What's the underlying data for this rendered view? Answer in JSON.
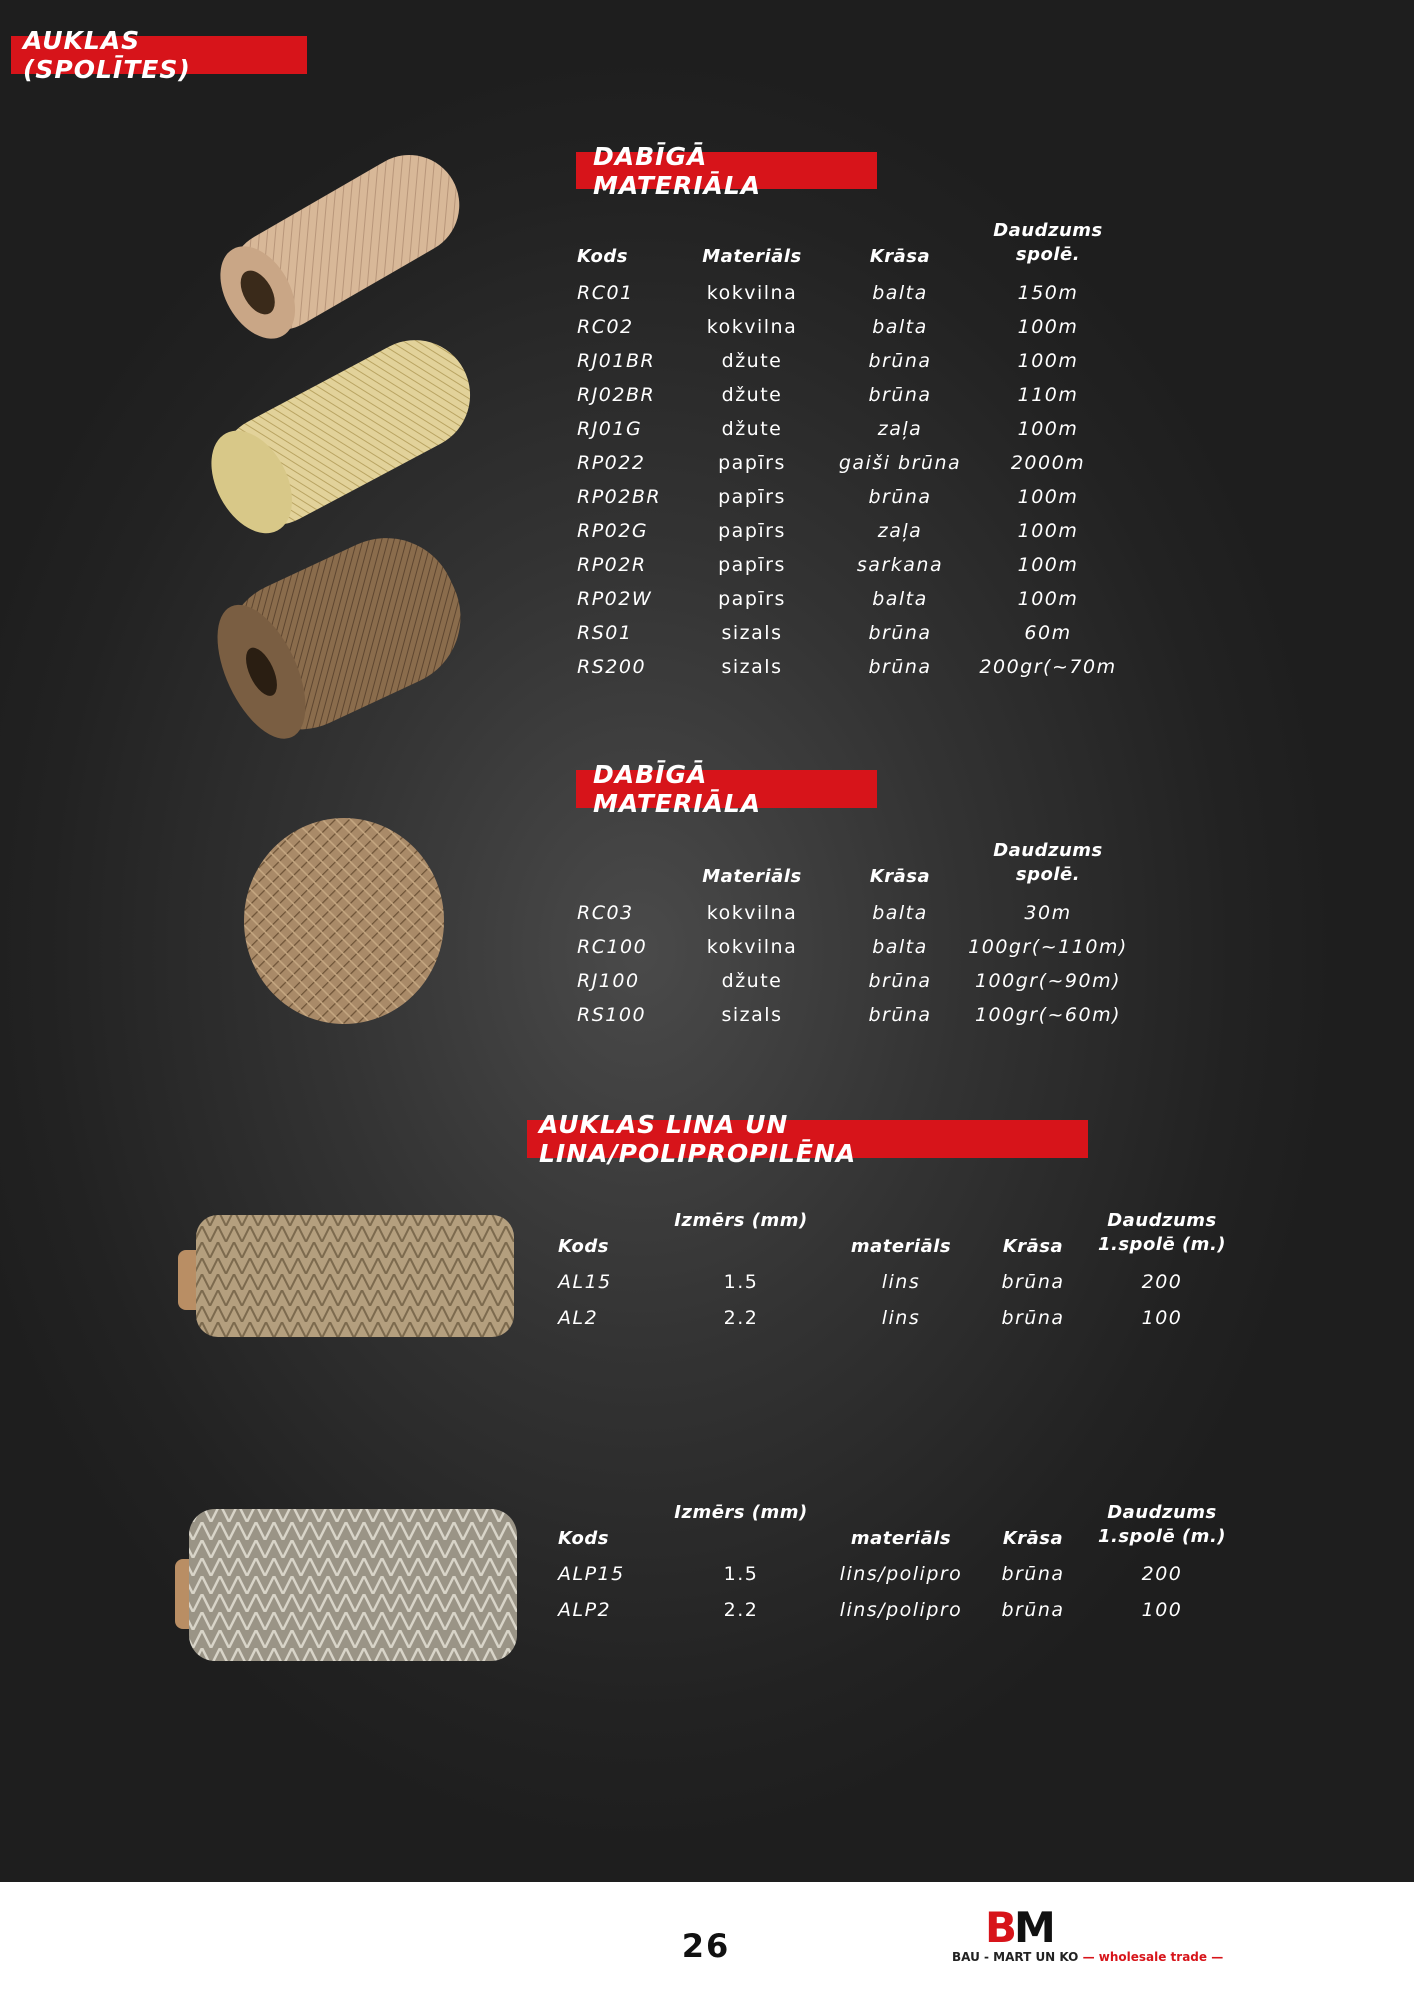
{
  "page_title": "AUKLAS (SPOLĪTES)",
  "section1": {
    "title": "DABĪGĀ MATERIĀLA",
    "headers": [
      "Kods",
      "Materiāls",
      "Krāsa",
      "Daudzums spolē."
    ],
    "rows": [
      [
        "RC01",
        "kokvilna",
        "balta",
        "150m"
      ],
      [
        "RC02",
        "kokvilna",
        "balta",
        "100m"
      ],
      [
        "RJ01BR",
        "džute",
        "brūna",
        "100m"
      ],
      [
        "RJ02BR",
        "džute",
        "brūna",
        "110m"
      ],
      [
        "RJ01G",
        "džute",
        "zaļa",
        "100m"
      ],
      [
        "RP022",
        "papīrs",
        "gaiši brūna",
        "2000m"
      ],
      [
        "RP02BR",
        "papīrs",
        "brūna",
        "100m"
      ],
      [
        "RP02G",
        "papīrs",
        "zaļa",
        "100m"
      ],
      [
        "RP02R",
        "papīrs",
        "sarkana",
        "100m"
      ],
      [
        "RP02W",
        "papīrs",
        "balta",
        "100m"
      ],
      [
        "RS01",
        "sizals",
        "brūna",
        "60m"
      ],
      [
        "RS200",
        "sizals",
        "brūna",
        "200gr(~70m"
      ]
    ]
  },
  "section2": {
    "title": "DABĪGĀ MATERIĀLA",
    "headers": [
      "",
      "Materiāls",
      "Krāsa",
      "Daudzums spolē."
    ],
    "rows": [
      [
        "RC03",
        "kokvilna",
        "balta",
        "30m"
      ],
      [
        "RC100",
        "kokvilna",
        "balta",
        "100gr(~110m)"
      ],
      [
        "RJ100",
        "džute",
        "brūna",
        "100gr(~90m)"
      ],
      [
        "RS100",
        "sizals",
        "brūna",
        "100gr(~60m)"
      ]
    ]
  },
  "section3": {
    "title": "AUKLAS LINA UN LINA/POLIPROPILĒNA",
    "table_a": {
      "headers": [
        "Kods",
        "Izmērs (mm)",
        "materiāls",
        "Krāsa",
        "Daudzums 1.spolē (m.)"
      ],
      "rows": [
        [
          "AL15",
          "1.5",
          "lins",
          "brūna",
          "200"
        ],
        [
          "AL2",
          "2.2",
          "lins",
          "brūna",
          "100"
        ]
      ]
    },
    "table_b": {
      "headers": [
        "Kods",
        "Izmērs (mm)",
        "materiāls",
        "Krāsa",
        "Daudzums 1.spolē (m.)"
      ],
      "rows": [
        [
          "ALP15",
          "1.5",
          "lins/polipro",
          "brūna",
          "200"
        ],
        [
          "ALP2",
          "2.2",
          "lins/polipro",
          "brūna",
          "100"
        ]
      ]
    }
  },
  "footer": {
    "page_number": "26",
    "logo_text": "BM",
    "company": "BAU - MART UN KO",
    "tagline": "— wholesale trade —"
  },
  "colors": {
    "accent": "#d7141a",
    "background": "#2e2e2e"
  }
}
